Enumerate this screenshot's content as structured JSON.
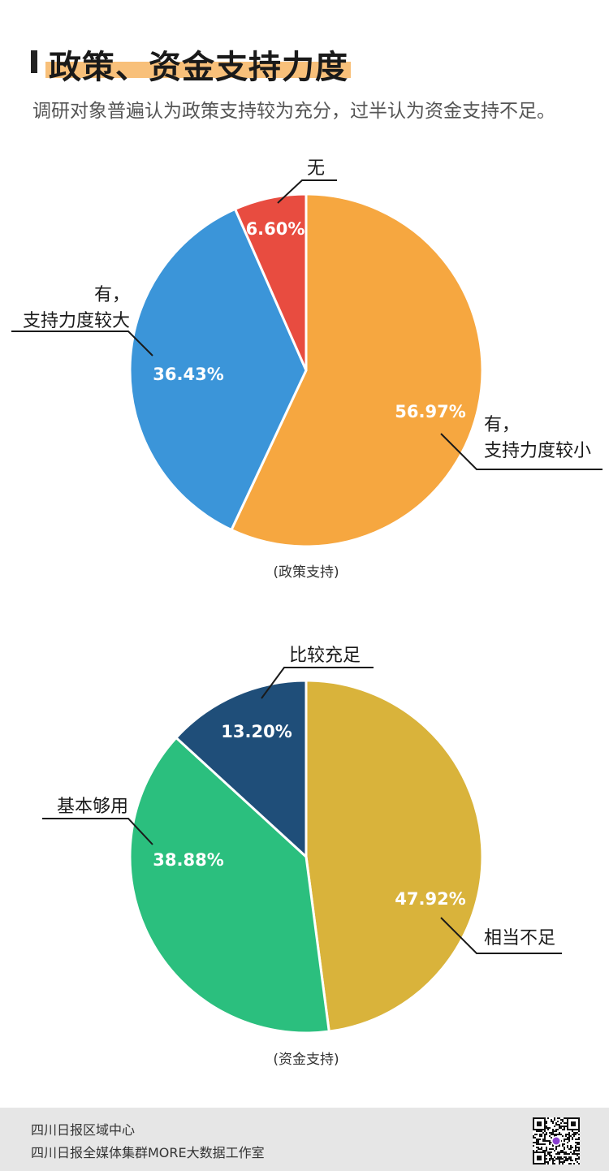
{
  "header": {
    "title": "政策、资金支持力度",
    "subtitle": "调研对象普遍认为政策支持较为充分，过半认为资金支持不足。"
  },
  "chart_data": [
    {
      "type": "pie",
      "caption": "(政策支持)",
      "slices": [
        {
          "label_lines": [
            "有，",
            "支持力度较小"
          ],
          "value": 56.97,
          "display": "56.97%",
          "color": "#f6a740"
        },
        {
          "label_lines": [
            "有，",
            "支持力度较大"
          ],
          "value": 36.43,
          "display": "36.43%",
          "color": "#3b95d9"
        },
        {
          "label_lines": [
            "无"
          ],
          "value": 6.6,
          "display": "6.60%",
          "color": "#e84c40"
        }
      ]
    },
    {
      "type": "pie",
      "caption": "(资金支持)",
      "slices": [
        {
          "label_lines": [
            "相当不足"
          ],
          "value": 47.92,
          "display": "47.92%",
          "color": "#d9b33b"
        },
        {
          "label_lines": [
            "基本够用"
          ],
          "value": 38.88,
          "display": "38.88%",
          "color": "#2bbf7e"
        },
        {
          "label_lines": [
            "比较充足"
          ],
          "value": 13.2,
          "display": "13.20%",
          "color": "#1f4e79"
        }
      ]
    }
  ],
  "footer": {
    "line1": "四川日报区域中心",
    "line2": "四川日报全媒体集群MORE大数据工作室"
  },
  "qr_icon": "qr-code-icon"
}
